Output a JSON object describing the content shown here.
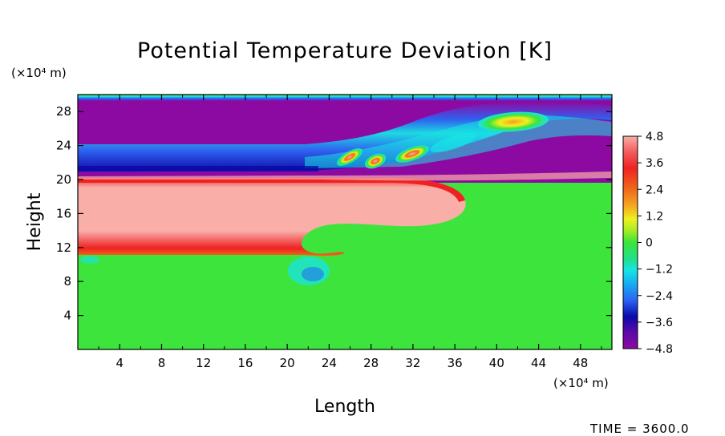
{
  "chart_data": {
    "type": "heatmap",
    "title": "Potential Temperature Deviation [K]",
    "xlabel": "Length",
    "ylabel": "Height",
    "x_unit": "(×10⁴ m)",
    "y_unit": "(×10⁴ m)",
    "xlim": [
      0,
      51
    ],
    "ylim": [
      0,
      30
    ],
    "x_ticks": [
      4,
      8,
      12,
      16,
      20,
      24,
      28,
      32,
      36,
      40,
      44,
      48
    ],
    "y_ticks": [
      4,
      8,
      12,
      16,
      20,
      24,
      28
    ],
    "colorbar": {
      "vmin": -4.8,
      "vmax": 4.8,
      "tick_values": [
        4.8,
        3.6,
        2.4,
        1.2,
        0,
        -1.2,
        -2.4,
        -3.6,
        -4.8
      ],
      "tick_labels": [
        "4.8",
        "3.6",
        "2.4",
        "1.2",
        "0",
        "−1.2",
        "−2.4",
        "−3.6",
        "−4.8"
      ]
    },
    "colors": {
      "positive_max": "#f9aea8",
      "positive_strong": "#ee2222",
      "orange": "#f4a020",
      "yellow": "#f0f020",
      "zero": "#3ce43c",
      "cyan": "#18e4e4",
      "blue": "#2a66f4",
      "dark_blue": "#0a0aa8",
      "negative_max": "#8c0aa2"
    },
    "time_label": "TIME = 3600.0"
  }
}
